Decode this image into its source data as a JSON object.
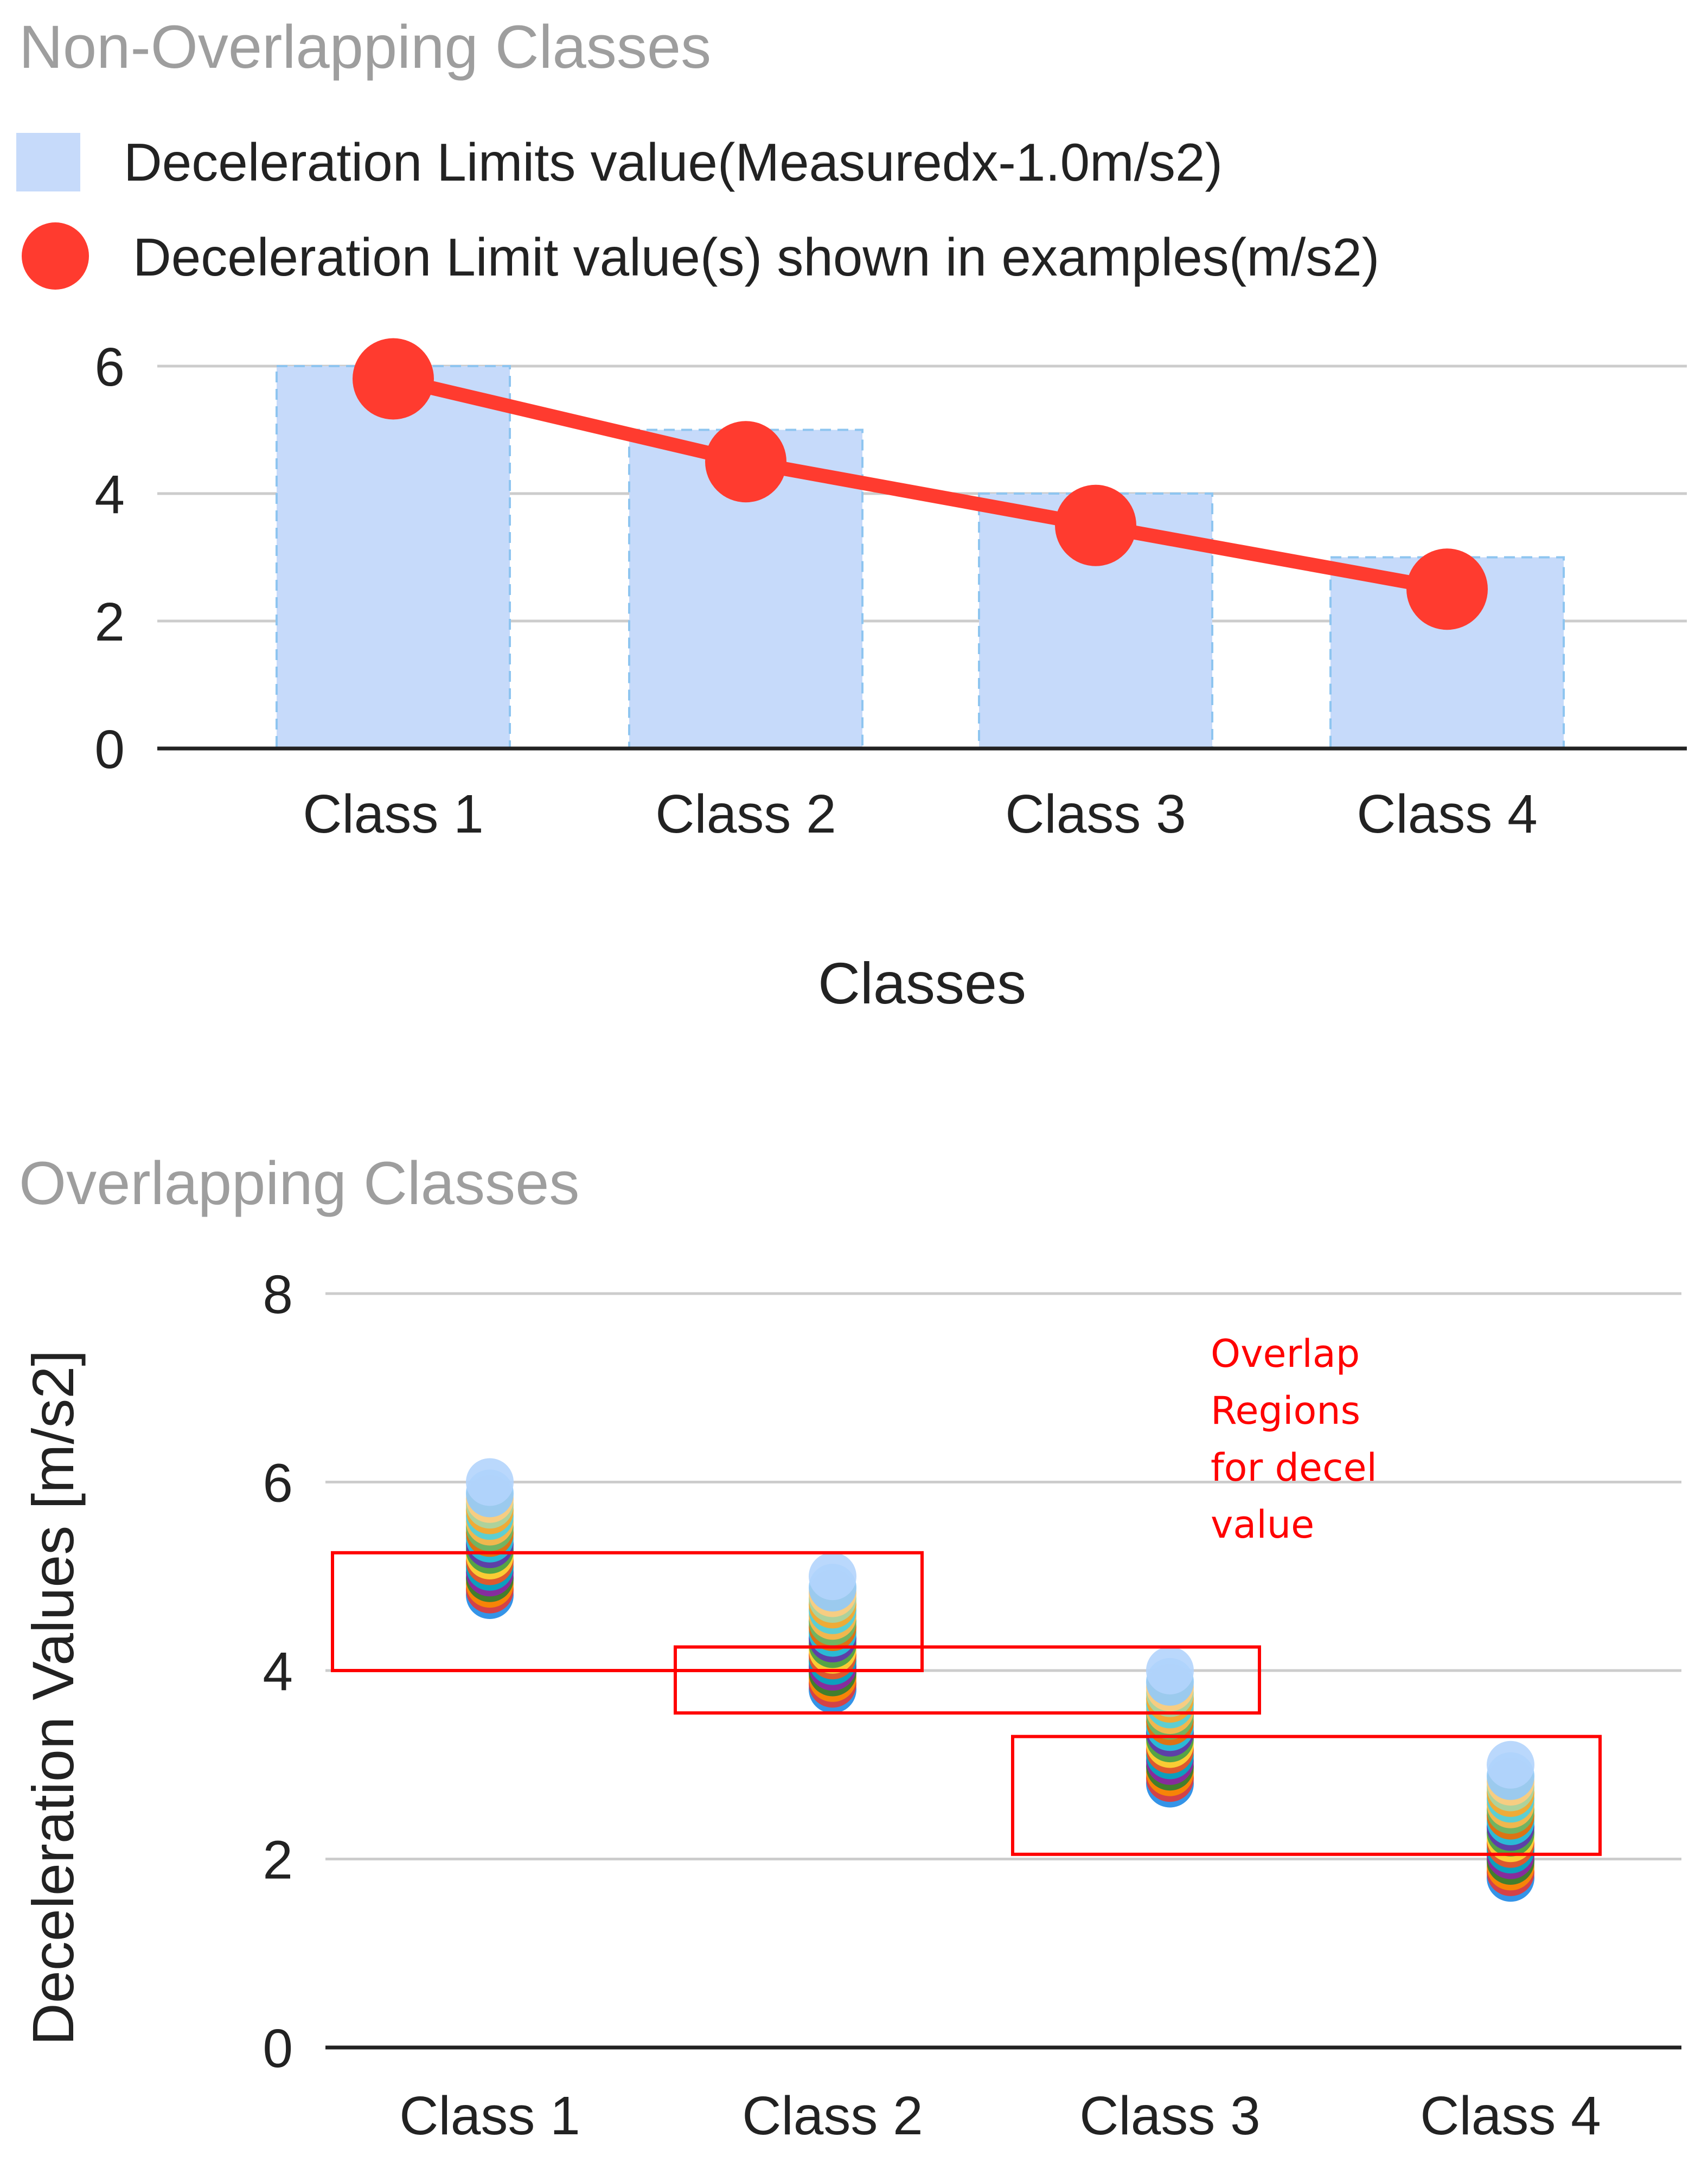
{
  "chart_data": [
    {
      "type": "bar",
      "title": "Non-Overlapping Classes",
      "xlabel": "Classes",
      "ylabel": "",
      "categories": [
        "Class 1",
        "Class 2",
        "Class 3",
        "Class 4"
      ],
      "ylim": [
        0,
        6
      ],
      "yticks": [
        0,
        2,
        4,
        6
      ],
      "grid": true,
      "legend_position": "top",
      "series": [
        {
          "name": "Deceleration Limits value(Measuredx-1.0m/s2)",
          "type": "bar",
          "color": "#c6dafa",
          "values": [
            6,
            5,
            4,
            3
          ]
        },
        {
          "name": "Deceleration Limit value(s) shown in examples(m/s2)",
          "type": "line",
          "color": "#ff3b2f",
          "values": [
            5.8,
            4.5,
            3.5,
            2.5
          ]
        }
      ]
    },
    {
      "type": "scatter",
      "title": "Overlapping Classes",
      "xlabel": "",
      "ylabel": "Deceleration Values [m/s2]",
      "categories": [
        "Class 1",
        "Class 2",
        "Class 3",
        "Class 4"
      ],
      "ylim": [
        0,
        8
      ],
      "yticks": [
        0,
        2,
        4,
        6,
        8
      ],
      "grid": true,
      "point_colors": [
        "#1e88e5",
        "#e53935",
        "#fb8c00",
        "#2e7d32",
        "#8e24aa",
        "#00acc1",
        "#f4511e",
        "#fdd835",
        "#43a047",
        "#5e35b1",
        "#26c6da",
        "#ef6c00",
        "#66bb6a",
        "#ffb74d",
        "#4dd0e1",
        "#ffa726",
        "#a5d6a7",
        "#ffcc80",
        "#90caf9",
        "#b3d4fc"
      ],
      "series": [
        {
          "category": "Class 1",
          "values": [
            4.8,
            4.86,
            4.92,
            4.98,
            5.04,
            5.1,
            5.16,
            5.22,
            5.28,
            5.34,
            5.4,
            5.46,
            5.52,
            5.58,
            5.64,
            5.7,
            5.76,
            5.82,
            5.88,
            6.0
          ]
        },
        {
          "category": "Class 2",
          "values": [
            3.8,
            3.86,
            3.92,
            3.98,
            4.04,
            4.1,
            4.16,
            4.22,
            4.28,
            4.34,
            4.4,
            4.46,
            4.52,
            4.58,
            4.64,
            4.7,
            4.76,
            4.82,
            4.88,
            5.0
          ]
        },
        {
          "category": "Class 3",
          "values": [
            2.8,
            2.86,
            2.92,
            2.98,
            3.04,
            3.1,
            3.16,
            3.22,
            3.28,
            3.34,
            3.4,
            3.46,
            3.52,
            3.58,
            3.64,
            3.7,
            3.76,
            3.82,
            3.88,
            4.0
          ]
        },
        {
          "category": "Class 4",
          "values": [
            1.8,
            1.86,
            1.92,
            1.98,
            2.04,
            2.1,
            2.16,
            2.22,
            2.28,
            2.34,
            2.4,
            2.46,
            2.52,
            2.58,
            2.64,
            2.7,
            2.76,
            2.82,
            2.88,
            3.0
          ]
        }
      ],
      "annotation": {
        "lines": [
          "Overlap",
          "Regions",
          "for decel",
          "value"
        ],
        "color": "#ff0000"
      },
      "overlap_regions": [
        {
          "from": "Class 1",
          "to": "Class 2",
          "ymin": 4.0,
          "ymax": 5.25
        },
        {
          "from": "Class 2",
          "to": "Class 3",
          "ymin": 3.55,
          "ymax": 4.25
        },
        {
          "from": "Class 3",
          "to": "Class 4",
          "ymin": 2.05,
          "ymax": 3.3
        }
      ]
    }
  ]
}
